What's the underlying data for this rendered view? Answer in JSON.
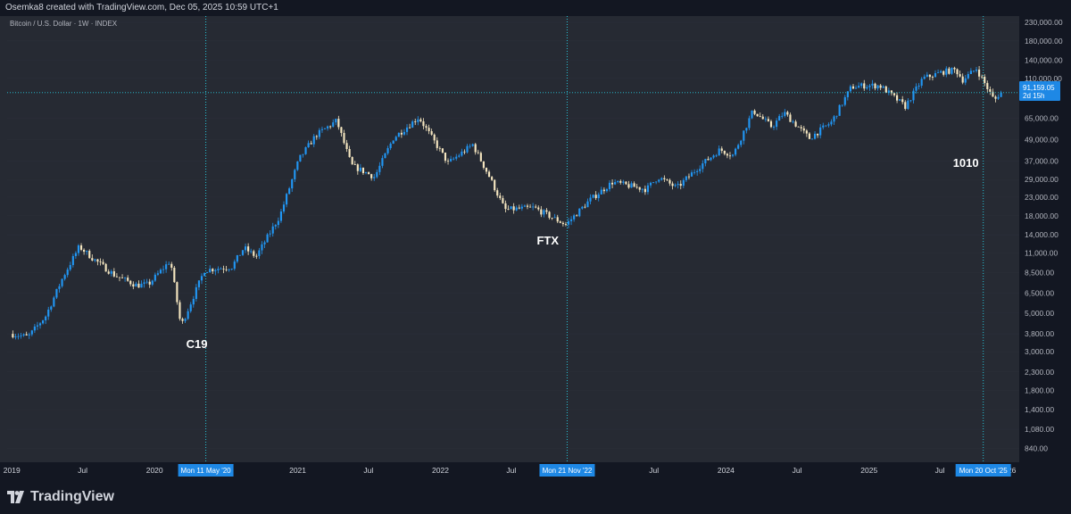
{
  "header": {
    "attribution": "Osemka8 created with TradingView.com, Dec 05, 2025 10:59 UTC+1"
  },
  "footer": {
    "logo_text": "TradingView"
  },
  "colors": {
    "background": "#131722",
    "plot_background": "#262a33",
    "up_candle": "#2196f3",
    "down_candle": "#f5e6c0",
    "guide_line": "#26c6da",
    "badge": "#1e88e5"
  },
  "chart_data": {
    "type": "candlestick",
    "symbol_label": "Bitcoin / U.S. Dollar · 1W · INDEX",
    "scale": "log",
    "ylim": [
      700,
      250000
    ],
    "y_ticks": [
      "230,000.00",
      "180,000.00",
      "140,000.00",
      "110,000.00",
      "65,000.00",
      "49,000.00",
      "37,000.00",
      "29,000.00",
      "23,000.00",
      "18,000.00",
      "14,000.00",
      "11,000.00",
      "8,500.00",
      "6,500.00",
      "5,000.00",
      "3,800.00",
      "3,000.00",
      "2,300.00",
      "1,800.00",
      "1,400.00",
      "1,080.00",
      "840.00"
    ],
    "x_ticks": [
      "2019",
      "Jul",
      "2020",
      "2021",
      "Jul",
      "2022",
      "Jul",
      "Jul",
      "2024",
      "Jul",
      "2025",
      "Jul",
      "26"
    ],
    "current_price": {
      "value": 91159.05,
      "label": "91,159.05",
      "countdown": "2d 15h"
    },
    "markers": [
      {
        "date_label": "Mon 11 May '20",
        "annotation": "C19"
      },
      {
        "date_label": "Mon 21 Nov '22",
        "annotation": "FTX"
      },
      {
        "date_label": "Mon 20 Oct '25",
        "annotation": "1010"
      }
    ],
    "anchors": [
      [
        "2019-01-01",
        3800
      ],
      [
        "2019-02-15",
        3650
      ],
      [
        "2019-04-01",
        4800
      ],
      [
        "2019-05-15",
        8000
      ],
      [
        "2019-06-26",
        12000
      ],
      [
        "2019-08-01",
        10200
      ],
      [
        "2019-09-25",
        8200
      ],
      [
        "2019-11-20",
        7200
      ],
      [
        "2019-12-20",
        7300
      ],
      [
        "2020-02-14",
        10000
      ],
      [
        "2020-03-12",
        4200
      ],
      [
        "2020-05-11",
        8800
      ],
      [
        "2020-07-20",
        9200
      ],
      [
        "2020-08-20",
        11800
      ],
      [
        "2020-09-20",
        10500
      ],
      [
        "2020-11-20",
        18000
      ],
      [
        "2021-01-08",
        38000
      ],
      [
        "2021-02-20",
        52000
      ],
      [
        "2021-04-14",
        63000
      ],
      [
        "2021-05-22",
        35000
      ],
      [
        "2021-07-20",
        30000
      ],
      [
        "2021-09-06",
        50000
      ],
      [
        "2021-11-10",
        66000
      ],
      [
        "2022-01-24",
        36000
      ],
      [
        "2022-03-28",
        46000
      ],
      [
        "2022-05-10",
        30000
      ],
      [
        "2022-06-18",
        19500
      ],
      [
        "2022-09-01",
        20000
      ],
      [
        "2022-11-21",
        16000
      ],
      [
        "2023-01-20",
        22000
      ],
      [
        "2023-03-20",
        28000
      ],
      [
        "2023-06-15",
        25500
      ],
      [
        "2023-07-15",
        30000
      ],
      [
        "2023-09-01",
        26000
      ],
      [
        "2023-10-25",
        34000
      ],
      [
        "2023-12-20",
        43000
      ],
      [
        "2024-01-23",
        40000
      ],
      [
        "2024-03-14",
        72000
      ],
      [
        "2024-05-01",
        58000
      ],
      [
        "2024-06-01",
        70000
      ],
      [
        "2024-08-05",
        50000
      ],
      [
        "2024-10-01",
        62000
      ],
      [
        "2024-11-20",
        98000
      ],
      [
        "2024-12-20",
        100000
      ],
      [
        "2025-02-01",
        100000
      ],
      [
        "2025-04-07",
        76000
      ],
      [
        "2025-05-22",
        110000
      ],
      [
        "2025-07-14",
        120000
      ],
      [
        "2025-08-14",
        123000
      ],
      [
        "2025-09-01",
        108000
      ],
      [
        "2025-10-06",
        125000
      ],
      [
        "2025-10-20",
        110000
      ],
      [
        "2025-11-21",
        82000
      ],
      [
        "2025-12-05",
        91159
      ]
    ]
  }
}
